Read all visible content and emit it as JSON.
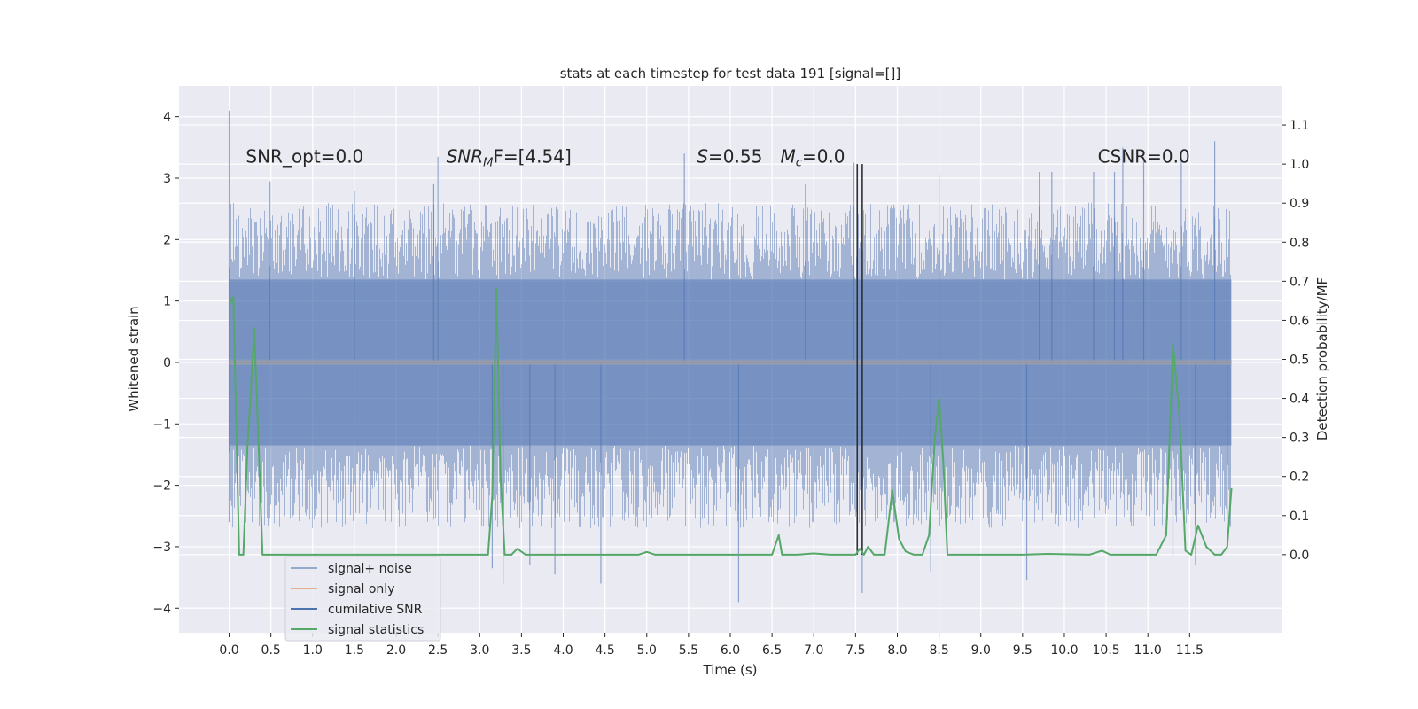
{
  "chart_data": {
    "type": "line",
    "title": "stats at each timestep for test data 191 [signal=[]]",
    "xlabel": "Time (s)",
    "ylabel_left": "Whitened strain",
    "ylabel_right": "Detection probability/MF",
    "xlim": [
      -0.6,
      12.6
    ],
    "ylim_left": [
      -4.4,
      4.5
    ],
    "ylim_right": [
      -0.2,
      1.2
    ],
    "xticks": [
      "0.0",
      "0.5",
      "1.0",
      "1.5",
      "2.0",
      "2.5",
      "3.0",
      "3.5",
      "4.0",
      "4.5",
      "5.0",
      "5.5",
      "6.0",
      "6.5",
      "7.0",
      "7.5",
      "8.0",
      "8.5",
      "9.0",
      "9.5",
      "10.0",
      "10.5",
      "11.0",
      "11.5"
    ],
    "yticks_left": [
      "−4",
      "−3",
      "−2",
      "−1",
      "0",
      "1",
      "2",
      "3",
      "4"
    ],
    "yticks_right": [
      "0.0",
      "0.1",
      "0.2",
      "0.3",
      "0.4",
      "0.5",
      "0.6",
      "0.7",
      "0.8",
      "0.9",
      "1.0",
      "1.1"
    ],
    "grid": true,
    "annotations": [
      {
        "id": "snr-opt",
        "text": "SNR_opt=0.0",
        "x": 0.2,
        "y": 3.25
      },
      {
        "id": "snr-mf",
        "text": "SNR",
        "sub": "M",
        "tail": "F=[4.54]",
        "x": 2.6,
        "y": 3.25
      },
      {
        "id": "s-value",
        "text": "S",
        "tail": "=0.55",
        "x": 5.6,
        "y": 3.25
      },
      {
        "id": "mc-value",
        "text": "M",
        "sub": "c",
        "tail": "=0.0",
        "x": 6.6,
        "y": 3.25
      },
      {
        "id": "csnr",
        "text": "CSNR=0.0",
        "x": 10.4,
        "y": 3.25
      }
    ],
    "vertical_lines": [
      7.52,
      7.58
    ],
    "series": [
      {
        "name": "signal+ noise",
        "color": "#4c72b0",
        "style": "noise",
        "x_range": [
          0.0,
          12.0
        ],
        "band_inner": 1.35,
        "band_outer": 2.0,
        "spikes": [
          {
            "x": 0.0,
            "y": 4.1
          },
          {
            "x": 0.0,
            "y": -2.6
          },
          {
            "x": 0.49,
            "y": 2.95
          },
          {
            "x": 1.5,
            "y": 2.8
          },
          {
            "x": 2.45,
            "y": 2.9
          },
          {
            "x": 2.5,
            "y": 3.35
          },
          {
            "x": 3.15,
            "y": -3.35
          },
          {
            "x": 3.28,
            "y": -3.6
          },
          {
            "x": 3.6,
            "y": -3.3
          },
          {
            "x": 3.9,
            "y": -3.45
          },
          {
            "x": 4.45,
            "y": -3.6
          },
          {
            "x": 5.45,
            "y": 3.4
          },
          {
            "x": 6.1,
            "y": -3.9
          },
          {
            "x": 6.9,
            "y": 2.9
          },
          {
            "x": 7.48,
            "y": 3.25
          },
          {
            "x": 7.58,
            "y": -3.75
          },
          {
            "x": 8.4,
            "y": -3.4
          },
          {
            "x": 8.5,
            "y": 3.05
          },
          {
            "x": 9.55,
            "y": -3.55
          },
          {
            "x": 9.7,
            "y": 3.1
          },
          {
            "x": 9.85,
            "y": 3.1
          },
          {
            "x": 10.35,
            "y": 3.1
          },
          {
            "x": 10.6,
            "y": 3.1
          },
          {
            "x": 10.7,
            "y": 3.5
          },
          {
            "x": 10.95,
            "y": 3.3
          },
          {
            "x": 11.3,
            "y": -3.15
          },
          {
            "x": 11.4,
            "y": 3.3
          },
          {
            "x": 11.57,
            "y": -3.3
          },
          {
            "x": 11.8,
            "y": 3.6
          },
          {
            "x": 11.95,
            "y": -2.55
          }
        ]
      },
      {
        "name": "signal only",
        "color": "#dd8452",
        "x": [
          0.0,
          12.0
        ],
        "y": [
          0.0,
          0.0
        ]
      },
      {
        "name": "cumilative SNR",
        "color": "#4c72b0",
        "x": [
          0.0,
          12.0
        ],
        "y": [
          0.0,
          0.0
        ]
      },
      {
        "name": "signal statistics",
        "color": "#55a868",
        "axis": "right",
        "x": [
          0.0,
          0.05,
          0.12,
          0.17,
          0.22,
          0.25,
          0.3,
          0.35,
          0.4,
          3.1,
          3.15,
          3.2,
          3.25,
          3.3,
          3.38,
          3.45,
          3.55,
          4.9,
          5.0,
          5.1,
          5.2,
          6.5,
          6.58,
          6.62,
          6.7,
          6.8,
          7.0,
          7.2,
          7.4,
          7.5,
          7.55,
          7.6,
          7.65,
          7.72,
          7.85,
          7.94,
          8.02,
          8.1,
          8.2,
          8.3,
          8.38,
          8.45,
          8.5,
          8.55,
          8.6,
          8.7,
          9.0,
          9.5,
          9.8,
          10.3,
          10.45,
          10.55,
          10.7,
          11.0,
          11.1,
          11.22,
          11.3,
          11.38,
          11.45,
          11.52,
          11.6,
          11.7,
          11.8,
          11.88,
          11.95,
          12.0
        ],
        "y": [
          0.64,
          0.66,
          0.0,
          0.0,
          0.28,
          0.38,
          0.58,
          0.3,
          0.0,
          0.0,
          0.15,
          0.68,
          0.2,
          0.0,
          0.0,
          0.015,
          0.0,
          0.0,
          0.007,
          0.0,
          0.0,
          0.0,
          0.05,
          0.0,
          0.0,
          0.0,
          0.003,
          0.0,
          0.0,
          0.0,
          0.015,
          0.0,
          0.02,
          0.0,
          0.0,
          0.165,
          0.04,
          0.008,
          0.0,
          0.0,
          0.05,
          0.3,
          0.4,
          0.24,
          0.0,
          0.0,
          0.0,
          0.0,
          0.002,
          0.0,
          0.01,
          0.0,
          0.0,
          0.0,
          0.0,
          0.05,
          0.54,
          0.35,
          0.01,
          0.0,
          0.075,
          0.02,
          0.0,
          0.0,
          0.02,
          0.17
        ]
      }
    ],
    "legend": {
      "placement": "lower-left",
      "entries": [
        "signal+ noise",
        "signal only",
        "cumilative SNR",
        "signal statistics"
      ]
    }
  }
}
